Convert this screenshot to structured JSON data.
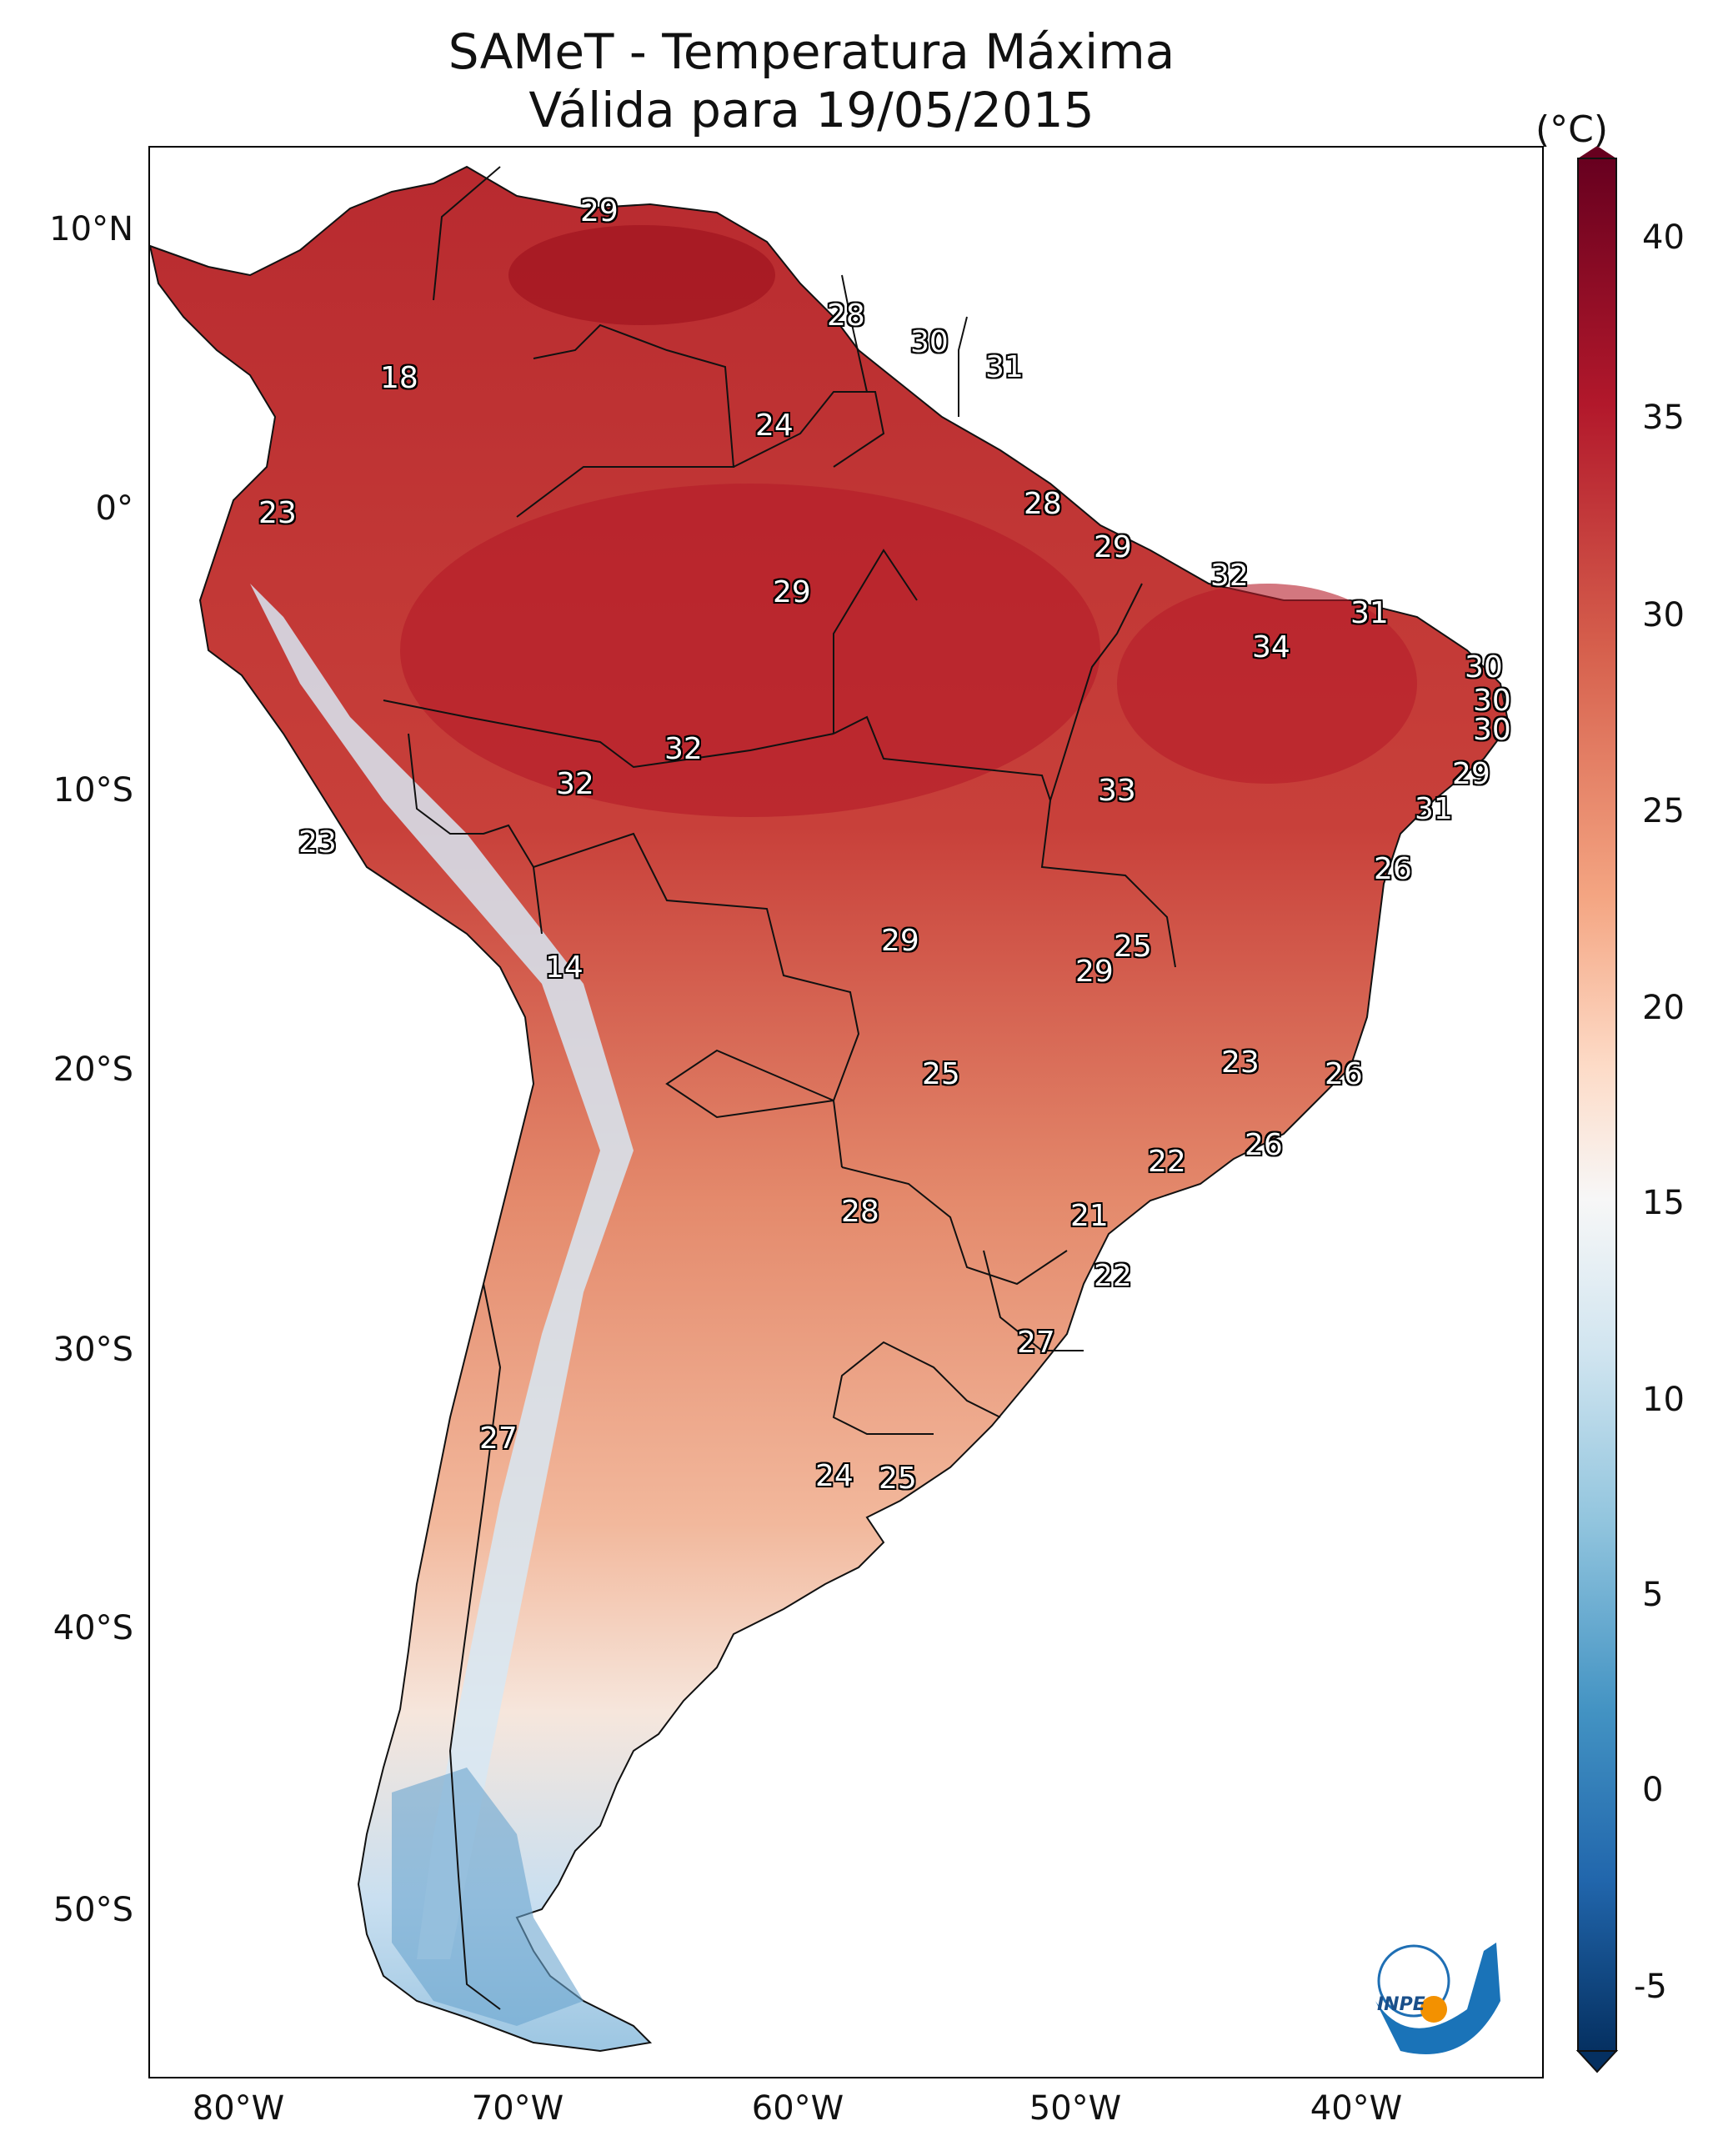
{
  "title": {
    "line1": "SAMeT - Temperatura Máxima",
    "line2": "Válida para 19/05/2015"
  },
  "axes": {
    "lat_labels": [
      "10°N",
      "0°",
      "10°S",
      "20°S",
      "30°S",
      "40°S",
      "50°S"
    ],
    "lon_labels": [
      "80°W",
      "70°W",
      "60°W",
      "50°W",
      "40°W"
    ]
  },
  "colorbar": {
    "unit": "(°C)",
    "tick_labels": [
      "40",
      "35",
      "30",
      "25",
      "20",
      "15",
      "10",
      "5",
      "0",
      "-5"
    ],
    "colors": {
      "max": "#67001f",
      "hot": "#b2182b",
      "warm": "#d6604d",
      "mild": "#f4a582",
      "light": "#fddbc7",
      "neutral": "#f7f7f7",
      "cool": "#d1e5f0",
      "cold": "#92c5de",
      "colder": "#4393c3",
      "coldest": "#2166ac",
      "min": "#053061"
    }
  },
  "station_labels": [
    "29",
    "18",
    "28",
    "30",
    "31",
    "24",
    "23",
    "28",
    "29",
    "32",
    "29",
    "31",
    "34",
    "30",
    "30",
    "30",
    "32",
    "32",
    "33",
    "29",
    "23",
    "31",
    "26",
    "14",
    "29",
    "25",
    "29",
    "25",
    "23",
    "26",
    "26",
    "22",
    "28",
    "21",
    "22",
    "27",
    "27",
    "24",
    "25"
  ],
  "logo": "INPE"
}
